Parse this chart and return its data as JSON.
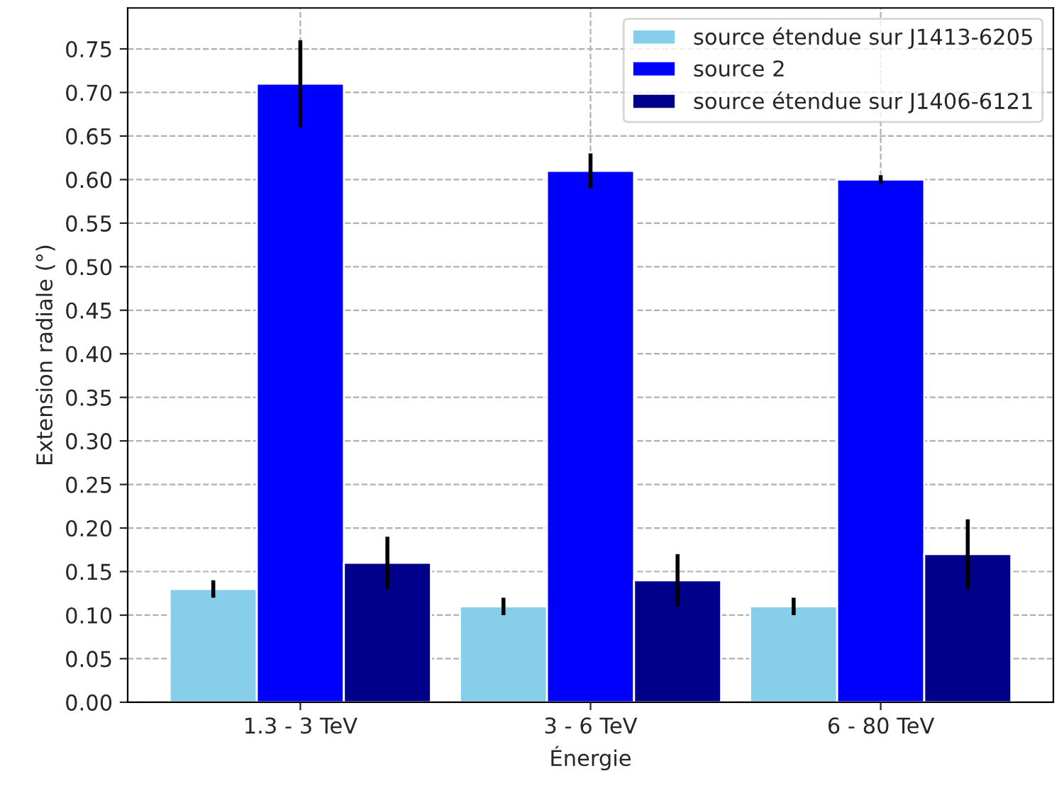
{
  "chart_data": {
    "type": "bar",
    "xlabel": "Énergie",
    "ylabel": "Extension radiale (°)",
    "categories": [
      "1.3 - 3 TeV",
      "3 - 6 TeV",
      "6 - 80 TeV"
    ],
    "series": [
      {
        "name": "source étendue sur J1413-6205",
        "color": "#87ceeb",
        "values": [
          0.13,
          0.11,
          0.11
        ],
        "errors": [
          0.01,
          0.01,
          0.01
        ]
      },
      {
        "name": "source 2",
        "color": "#0000ff",
        "values": [
          0.71,
          0.61,
          0.6
        ],
        "errors": [
          0.05,
          0.02,
          0.005
        ]
      },
      {
        "name": "source étendue sur J1406-6121",
        "color": "#00008b",
        "values": [
          0.16,
          0.14,
          0.17
        ],
        "errors": [
          0.03,
          0.03,
          0.04
        ]
      }
    ],
    "ylim": [
      0,
      0.797
    ],
    "yticks": [
      {
        "value": 0,
        "label": "0.00"
      },
      {
        "value": 0.05,
        "label": "0.05"
      },
      {
        "value": 0.1,
        "label": "0.10"
      },
      {
        "value": 0.15,
        "label": "0.15"
      },
      {
        "value": 0.2,
        "label": "0.20"
      },
      {
        "value": 0.25,
        "label": "0.25"
      },
      {
        "value": 0.3,
        "label": "0.30"
      },
      {
        "value": 0.35,
        "label": "0.35"
      },
      {
        "value": 0.4,
        "label": "0.40"
      },
      {
        "value": 0.45,
        "label": "0.45"
      },
      {
        "value": 0.5,
        "label": "0.50"
      },
      {
        "value": 0.55,
        "label": "0.55"
      },
      {
        "value": 0.6,
        "label": "0.60"
      },
      {
        "value": 0.65,
        "label": "0.65"
      },
      {
        "value": 0.7,
        "label": "0.70"
      },
      {
        "value": 0.75,
        "label": "0.75"
      }
    ],
    "grid": true,
    "legend": "top right"
  }
}
